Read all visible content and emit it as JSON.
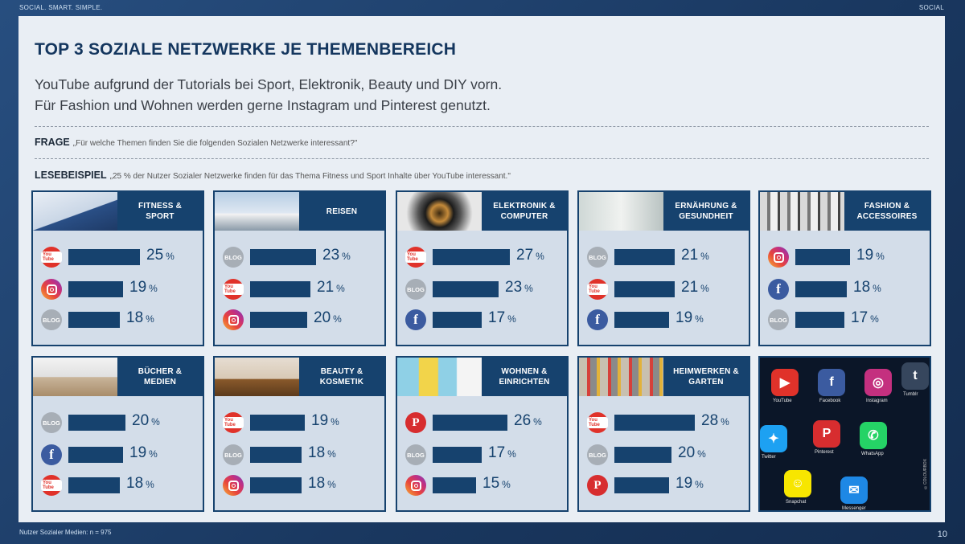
{
  "topbar": {
    "left": "SOCIAL. SMART. SIMPLE.",
    "right": "SOCIAL"
  },
  "footer": {
    "note": "Nutzer Sozialer Medien: n = 975",
    "page": "10"
  },
  "title": "TOP 3 SOZIALE NETZWERKE JE THEMENBEREICH",
  "subtitle": [
    "YouTube aufgrund der Tutorials bei Sport, Elektronik, Beauty und DIY vorn.",
    "Für Fashion und Wohnen werden gerne Instagram und Pinterest genutzt."
  ],
  "frage": {
    "label": "FRAGE",
    "text": "„Für welche Themen finden Sie die folgenden Sozialen Netzwerke interessant?\""
  },
  "lesebeispiel": {
    "label": "LESEBEISPIEL",
    "text": "„25 % der Nutzer Sozialer Netzwerke finden für das Thema Fitness und Sport Inhalte über YouTube interessant.\""
  },
  "colors": {
    "navy": "#16426e",
    "card_bg": "#d3dde9",
    "youtube": "#e0322a",
    "facebook": "#3b5ba0",
    "pinterest": "#d72d2f",
    "blog": "#a7aeb6"
  },
  "icon_text": {
    "youtube": "You Tube",
    "blog": "BLOG",
    "facebook": "f",
    "pinterest": "P"
  },
  "unit": "%",
  "chart_data": {
    "type": "bar",
    "unit": "%",
    "xlim": [
      0,
      30
    ],
    "panels": [
      {
        "category": "FITNESS &\nSPORT",
        "image": "dumbbell-photo",
        "entries": [
          {
            "network": "youtube",
            "value": 25
          },
          {
            "network": "instagram",
            "value": 19
          },
          {
            "network": "blog",
            "value": 18
          }
        ]
      },
      {
        "category": "REISEN",
        "image": "airplane-photo",
        "entries": [
          {
            "network": "blog",
            "value": 23
          },
          {
            "network": "youtube",
            "value": 21
          },
          {
            "network": "instagram",
            "value": 20
          }
        ]
      },
      {
        "category": "ELEKTRONIK &\nCOMPUTER",
        "image": "camera-lens-photo",
        "entries": [
          {
            "network": "youtube",
            "value": 27
          },
          {
            "network": "blog",
            "value": 23
          },
          {
            "network": "facebook",
            "value": 17
          }
        ]
      },
      {
        "category": "ERNÄHRUNG &\nGESUNDHEIT",
        "image": "pharmacy-photo",
        "entries": [
          {
            "network": "blog",
            "value": 21
          },
          {
            "network": "youtube",
            "value": 21
          },
          {
            "network": "facebook",
            "value": 19
          }
        ]
      },
      {
        "category": "FASHION &\nACCESSOIRES",
        "image": "clothes-rack-photo",
        "entries": [
          {
            "network": "instagram",
            "value": 19
          },
          {
            "network": "facebook",
            "value": 18
          },
          {
            "network": "blog",
            "value": 17
          }
        ]
      },
      {
        "category": "BÜCHER &\nMEDIEN",
        "image": "ereader-photo",
        "entries": [
          {
            "network": "blog",
            "value": 20
          },
          {
            "network": "facebook",
            "value": 19
          },
          {
            "network": "youtube",
            "value": 18
          }
        ]
      },
      {
        "category": "BEAUTY &\nKOSMETIK",
        "image": "cosmetics-photo",
        "entries": [
          {
            "network": "youtube",
            "value": 19
          },
          {
            "network": "blog",
            "value": 18
          },
          {
            "network": "instagram",
            "value": 18
          }
        ]
      },
      {
        "category": "WOHNEN &\nEINRICHTEN",
        "image": "cushions-photo",
        "entries": [
          {
            "network": "pinterest",
            "value": 26
          },
          {
            "network": "blog",
            "value": 17
          },
          {
            "network": "instagram",
            "value": 15
          }
        ]
      },
      {
        "category": "HEIMWERKEN &\nGARTEN",
        "image": "tools-photo",
        "entries": [
          {
            "network": "youtube",
            "value": 28
          },
          {
            "network": "blog",
            "value": 20
          },
          {
            "network": "pinterest",
            "value": 19
          }
        ]
      }
    ]
  },
  "phone_apps": [
    {
      "name": "YouTube",
      "color": "#e0322a",
      "glyph": "▶"
    },
    {
      "name": "Facebook",
      "color": "#3b5ba0",
      "glyph": "f"
    },
    {
      "name": "Instagram",
      "color": "#c4307f",
      "glyph": "◎"
    },
    {
      "name": "Tumblr",
      "color": "#36465d",
      "glyph": "t"
    },
    {
      "name": "Twitter",
      "color": "#1da1f2",
      "glyph": "✦"
    },
    {
      "name": "Pinterest",
      "color": "#d72d2f",
      "glyph": "P"
    },
    {
      "name": "WhatsApp",
      "color": "#25d366",
      "glyph": "✆"
    },
    {
      "name": "Snapchat",
      "color": "#f7e600",
      "glyph": "☺"
    },
    {
      "name": "Messenger",
      "color": "#1e88e5",
      "glyph": "✉"
    }
  ],
  "photo_credit": "©COLOURBOX"
}
